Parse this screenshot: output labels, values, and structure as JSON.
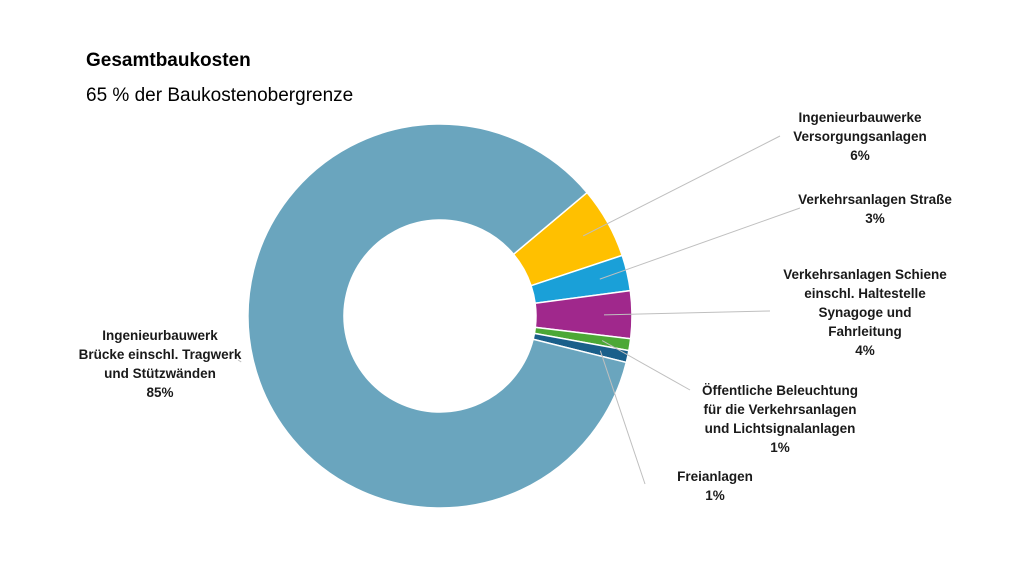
{
  "chart_data": {
    "type": "pie",
    "title": "Gesamtbaukosten",
    "subtitle": "65 % der Baukostenobergrenze",
    "slices": [
      {
        "name": "Ingenieurbauwerke\nVersorgungsanlagen",
        "value": 6,
        "value_label": "6%",
        "color": "#FFC000"
      },
      {
        "name": "Verkehrsanlagen Straße",
        "value": 3,
        "value_label": "3%",
        "color": "#1AA0D8"
      },
      {
        "name": "Verkehrsanlagen Schiene\neinschl. Haltestelle\nSynagoge und\nFahrleitung",
        "value": 4,
        "value_label": "4%",
        "color": "#A0288C"
      },
      {
        "name": "Öffentliche Beleuchtung\nfür die Verkehrsanlagen\nund Lichtsignalanlagen",
        "value": 1,
        "value_label": "1%",
        "color": "#4CA836"
      },
      {
        "name": "Freianlagen",
        "value": 1,
        "value_label": "1%",
        "color": "#1A5F8A"
      },
      {
        "name": "Ingenieurbauwerk\nBrücke einschl. Tragwerk\nund Stützwänden",
        "value": 85,
        "value_label": "85%",
        "color": "#6AA5BE"
      }
    ],
    "legend": "none",
    "data_labels": "outside with leader lines"
  }
}
